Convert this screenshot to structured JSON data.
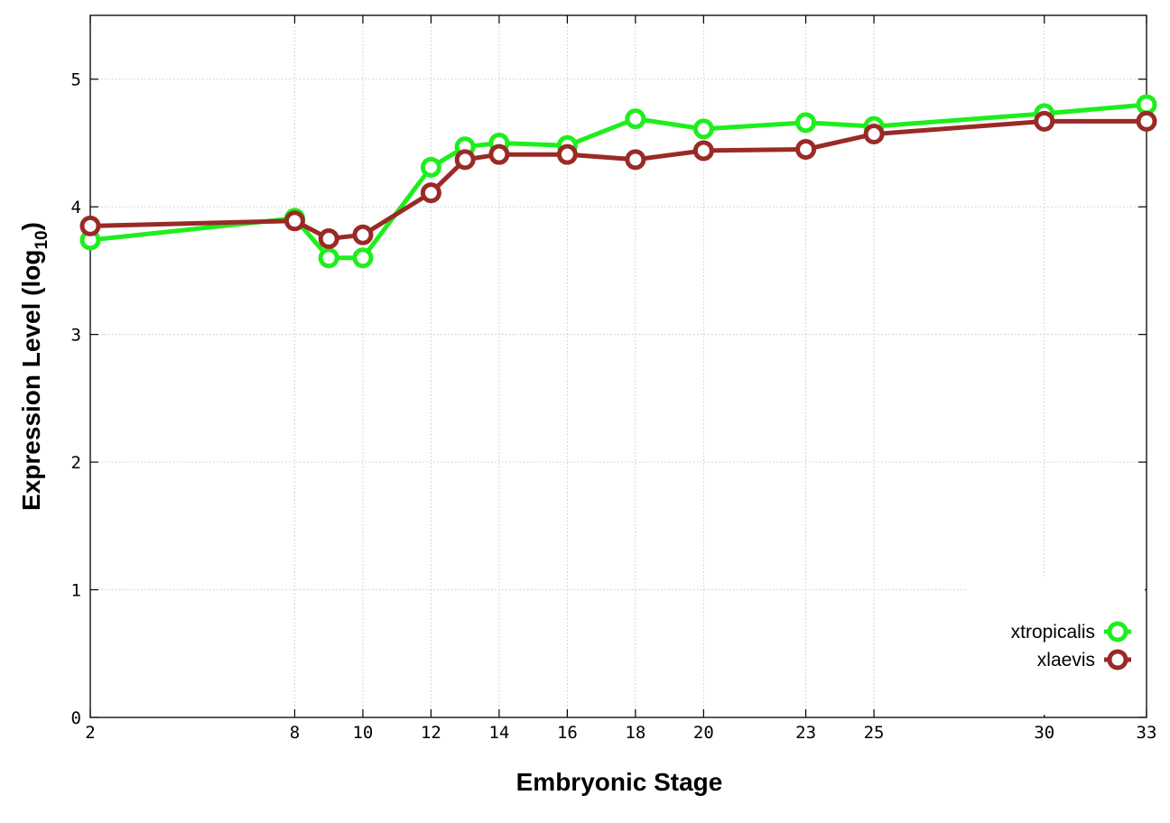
{
  "chart_data": {
    "type": "line",
    "xlabel": "Embryonic Stage",
    "ylabel": {
      "main": "Expression Level (log",
      "subscript": "10",
      "close": ")"
    },
    "x_ticks": [
      "2",
      "8",
      "10",
      "12",
      "14",
      "16",
      "18",
      "20",
      "23",
      "25",
      "30",
      "33"
    ],
    "x": [
      2,
      8,
      9,
      10,
      12,
      13,
      14,
      16,
      18,
      20,
      23,
      25,
      30,
      33
    ],
    "xlim": [
      2,
      33
    ],
    "y_ticks": [
      "0",
      "1",
      "2",
      "3",
      "4",
      "5"
    ],
    "ylim": [
      0,
      5.5
    ],
    "grid": true,
    "legend_position": "bottom-right",
    "series": [
      {
        "name": "xtropicalis",
        "color": "#1eee1e",
        "values": [
          3.74,
          3.91,
          3.6,
          3.6,
          4.31,
          4.47,
          4.5,
          4.48,
          4.69,
          4.61,
          4.66,
          4.63,
          4.73,
          4.8
        ]
      },
      {
        "name": "xlaevis",
        "color": "#992a26",
        "values": [
          3.85,
          3.89,
          3.75,
          3.78,
          4.11,
          4.37,
          4.41,
          4.41,
          4.37,
          4.44,
          4.45,
          4.57,
          4.67,
          4.67
        ]
      }
    ]
  }
}
